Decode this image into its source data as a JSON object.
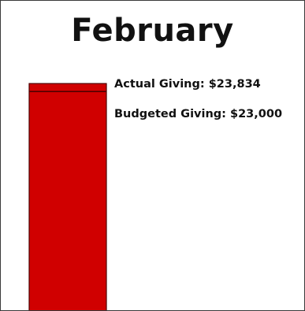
{
  "chart_data": {
    "type": "bar",
    "title": "February",
    "categories": [
      "February"
    ],
    "series": [
      {
        "name": "Actual Giving",
        "values": [
          23834
        ],
        "label": "Actual Giving: $23,834"
      },
      {
        "name": "Budgeted Giving",
        "values": [
          23000
        ],
        "label": "Budgeted Giving: $23,000"
      }
    ],
    "ylim": [
      0,
      24500
    ],
    "grid": false,
    "colors": {
      "bar_fill": "#d00000",
      "bar_stroke": "#4a0000",
      "budget_line": "#4a0000"
    }
  }
}
